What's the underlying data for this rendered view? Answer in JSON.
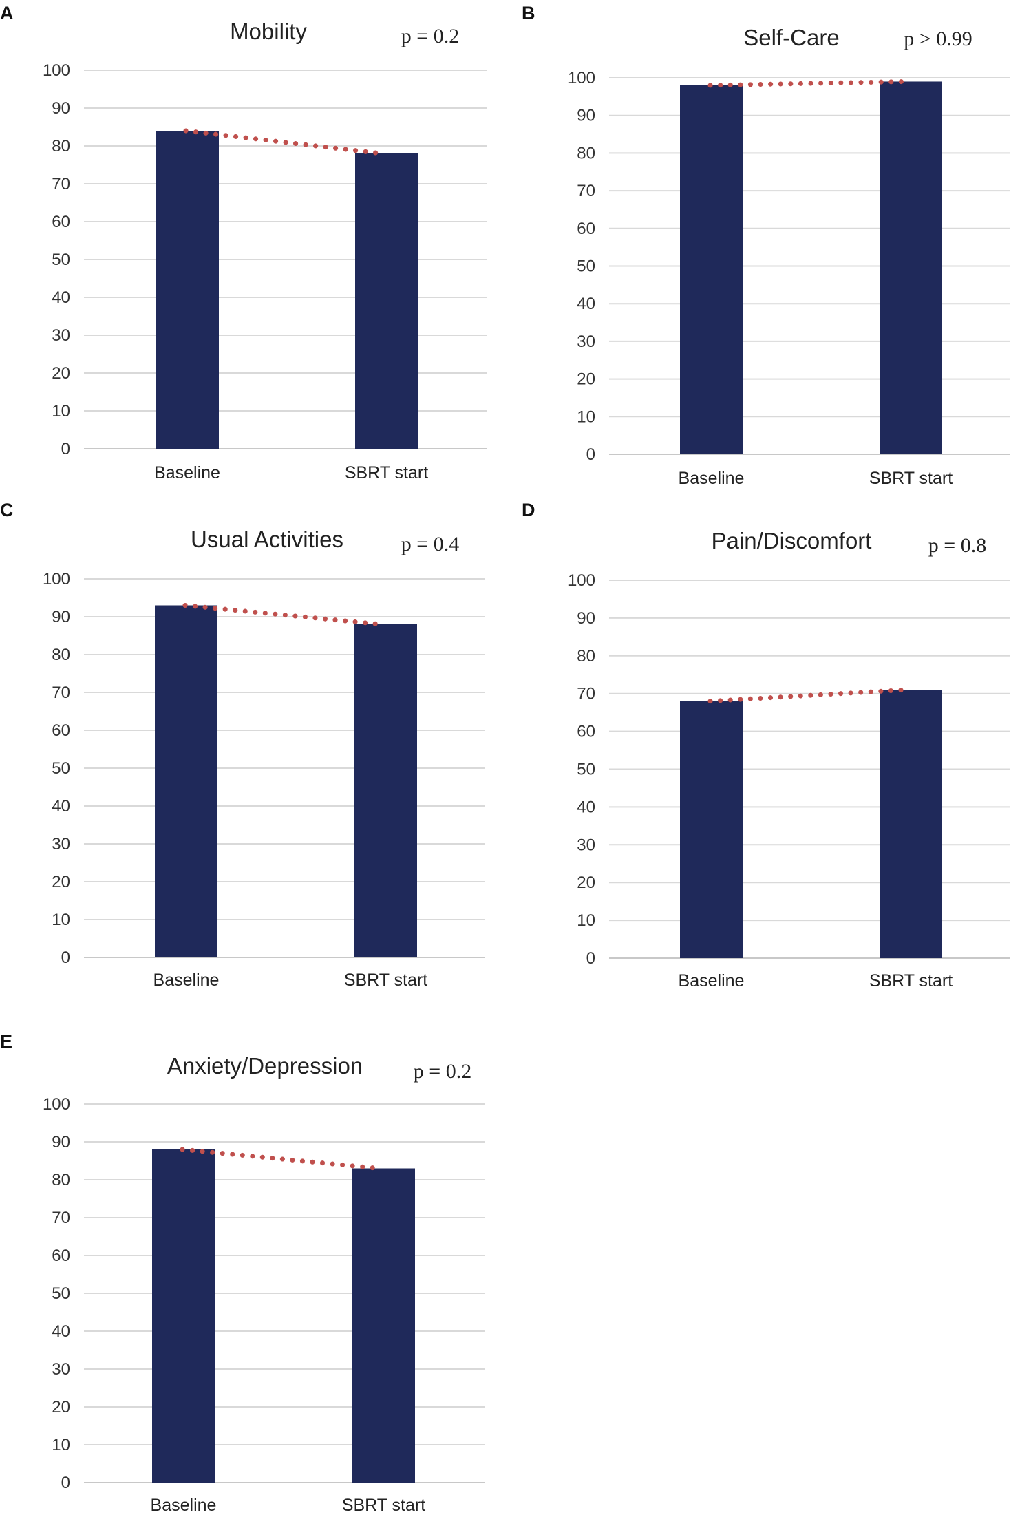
{
  "colors": {
    "bar": "#1f295a",
    "trend": "#c0504d",
    "grid": "#d9d9d9"
  },
  "chart_data": [
    {
      "panel": "A",
      "type": "bar",
      "title": "Mobility",
      "pvalue": "p = 0.2",
      "categories": [
        "Baseline",
        "SBRT start"
      ],
      "values": [
        84,
        78
      ],
      "ylim": [
        0,
        100
      ],
      "yticks": [
        "0",
        "10",
        "20",
        "30",
        "40",
        "50",
        "60",
        "70",
        "80",
        "90",
        "100"
      ],
      "trendline": "dotted",
      "xlabel": "",
      "ylabel": ""
    },
    {
      "panel": "B",
      "type": "bar",
      "title": "Self-Care",
      "pvalue": "p > 0.99",
      "categories": [
        "Baseline",
        "SBRT start"
      ],
      "values": [
        98,
        99
      ],
      "ylim": [
        0,
        100
      ],
      "yticks": [
        "0",
        "10",
        "20",
        "30",
        "40",
        "50",
        "60",
        "70",
        "80",
        "90",
        "100"
      ],
      "trendline": "dotted",
      "xlabel": "",
      "ylabel": ""
    },
    {
      "panel": "C",
      "type": "bar",
      "title": "Usual Activities",
      "pvalue": "p = 0.4",
      "categories": [
        "Baseline",
        "SBRT start"
      ],
      "values": [
        93,
        88
      ],
      "ylim": [
        0,
        100
      ],
      "yticks": [
        "0",
        "10",
        "20",
        "30",
        "40",
        "50",
        "60",
        "70",
        "80",
        "90",
        "100"
      ],
      "trendline": "dotted",
      "xlabel": "",
      "ylabel": ""
    },
    {
      "panel": "D",
      "type": "bar",
      "title": "Pain/Discomfort",
      "pvalue": "p = 0.8",
      "categories": [
        "Baseline",
        "SBRT start"
      ],
      "values": [
        68,
        71
      ],
      "ylim": [
        0,
        100
      ],
      "yticks": [
        "0",
        "10",
        "20",
        "30",
        "40",
        "50",
        "60",
        "70",
        "80",
        "90",
        "100"
      ],
      "trendline": "dotted",
      "xlabel": "",
      "ylabel": ""
    },
    {
      "panel": "E",
      "type": "bar",
      "title": "Anxiety/Depression",
      "pvalue": "p = 0.2",
      "categories": [
        "Baseline",
        "SBRT start"
      ],
      "values": [
        88,
        83
      ],
      "ylim": [
        0,
        100
      ],
      "yticks": [
        "0",
        "10",
        "20",
        "30",
        "40",
        "50",
        "60",
        "70",
        "80",
        "90",
        "100"
      ],
      "trendline": "dotted",
      "xlabel": "",
      "ylabel": ""
    }
  ]
}
